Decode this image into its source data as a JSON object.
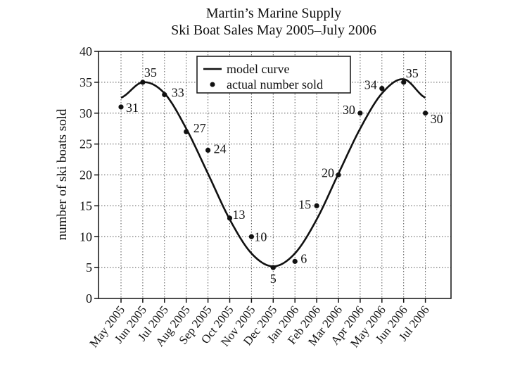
{
  "chart_data": {
    "type": "scatter",
    "title": "Martin’s Marine Supply",
    "subtitle": "Ski Boat Sales May 2005–July 2006",
    "xlabel": "",
    "ylabel": "number of ski boats sold",
    "ylim": [
      0,
      40
    ],
    "yticks": [
      0,
      5,
      10,
      15,
      20,
      25,
      30,
      35,
      40
    ],
    "grid": true,
    "legend_position": "top-center",
    "categories": [
      "May 2005",
      "Jun 2005",
      "Jul 2005",
      "Aug 2005",
      "Sep 2005",
      "Oct 2005",
      "Nov 2005",
      "Dec 2005",
      "Jan 2006",
      "Feb 2006",
      "Mar 2006",
      "Apr 2006",
      "May 2006",
      "Jun 2006",
      "Jul 2006"
    ],
    "series": [
      {
        "name": "model curve",
        "kind": "line",
        "values": [
          32.5,
          35,
          33.2,
          27.5,
          20.2,
          12.8,
          7.3,
          5.2,
          7.3,
          12.8,
          20.2,
          27.5,
          33.2,
          35.5,
          32.5
        ]
      },
      {
        "name": "actual number sold",
        "kind": "scatter",
        "values": [
          31,
          35,
          33,
          27,
          24,
          13,
          10,
          5,
          6,
          15,
          20,
          30,
          34,
          35,
          30
        ],
        "labels": [
          "31",
          "35",
          "33",
          "27",
          "24",
          "13",
          "10",
          "5",
          "6",
          "15",
          "20",
          "30",
          "34",
          "35",
          "30"
        ]
      }
    ]
  }
}
